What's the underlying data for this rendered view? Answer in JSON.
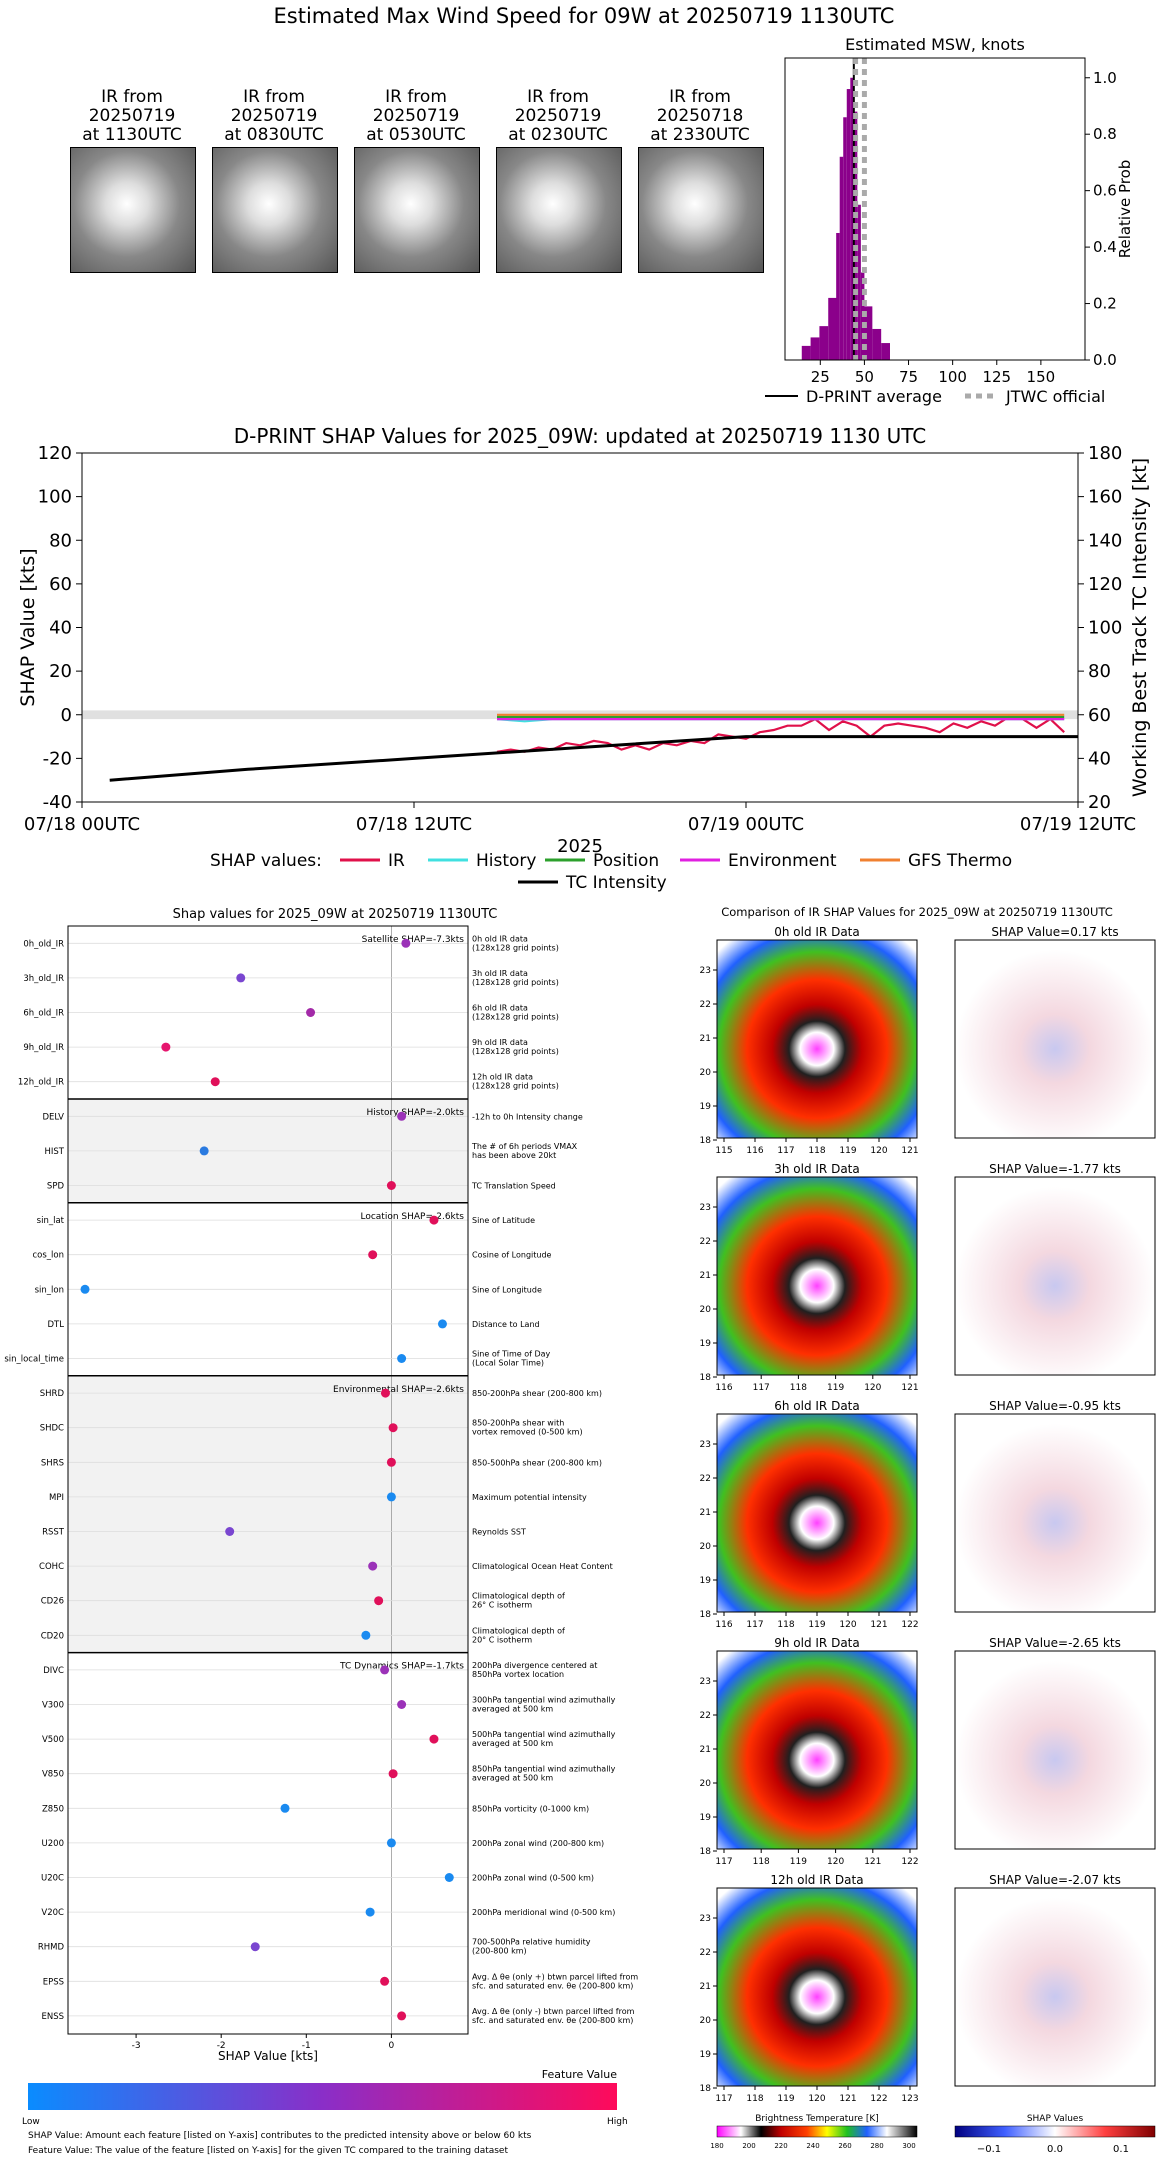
{
  "main_title": "Estimated Max Wind Speed for 09W at 20250719 1130UTC",
  "thumbnails": [
    {
      "line1": "IR from",
      "line2": "20250719",
      "line3": "at 1130UTC"
    },
    {
      "line1": "IR from",
      "line2": "20250719",
      "line3": "at 0830UTC"
    },
    {
      "line1": "IR from",
      "line2": "20250719",
      "line3": "at 0530UTC"
    },
    {
      "line1": "IR from",
      "line2": "20250719",
      "line3": "at 0230UTC"
    },
    {
      "line1": "IR from",
      "line2": "20250718",
      "line3": "at 2330UTC"
    }
  ],
  "msw_panel": {
    "legend_avg": "D-PRINT average",
    "legend_jtwc": "JTWC official"
  },
  "shap_timeline": {
    "legend_prefix": "SHAP values:",
    "tc_intensity_label": "TC Intensity"
  },
  "feature_panel": {
    "footnote1": "SHAP Value: Amount each feature [listed on Y-axis] contributes to the predicted intensity above or below 60 kts",
    "footnote2": "Feature Value: The value of the feature [listed on Y-axis] for the given TC compared to the training dataset",
    "colorbar_title": "Feature Value",
    "colorbar_low": "Low",
    "colorbar_high": "High"
  },
  "ir_panel": {
    "title": "Comparison of IR SHAP Values for 2025_09W at 20250719 1130UTC",
    "bt_colorbar_label": "Brightness Temperature [K]",
    "bt_ticks": [
      "180",
      "200",
      "220",
      "240",
      "260",
      "280",
      "300"
    ],
    "shap_colorbar_label": "SHAP Values",
    "shap_ticks": [
      "−0.1",
      "0.0",
      "0.1"
    ],
    "rows": [
      {
        "ir_title": "0h old IR Data",
        "shap_title": "SHAP Value=0.17 kts",
        "xticks": [
          "115",
          "116",
          "117",
          "118",
          "119",
          "120",
          "121"
        ]
      },
      {
        "ir_title": "3h old IR Data",
        "shap_title": "SHAP Value=-1.77 kts",
        "xticks": [
          "116",
          "117",
          "118",
          "119",
          "120",
          "121"
        ]
      },
      {
        "ir_title": "6h old IR Data",
        "shap_title": "SHAP Value=-0.95 kts",
        "xticks": [
          "116",
          "117",
          "118",
          "119",
          "120",
          "121",
          "122"
        ]
      },
      {
        "ir_title": "9h old IR Data",
        "shap_title": "SHAP Value=-2.65 kts",
        "xticks": [
          "117",
          "118",
          "119",
          "120",
          "121",
          "122"
        ]
      },
      {
        "ir_title": "12h old IR Data",
        "shap_title": "SHAP Value=-2.07 kts",
        "xticks": [
          "117",
          "118",
          "119",
          "120",
          "121",
          "122",
          "123"
        ]
      }
    ],
    "yticks": [
      "23",
      "22",
      "21",
      "20",
      "19",
      "18"
    ]
  },
  "chart_data": [
    {
      "type": "bar",
      "title": "Estimated MSW, knots",
      "xlabel": "",
      "ylabel": "Relative Prob",
      "xlim": [
        5,
        175
      ],
      "ylim": [
        0,
        1.07
      ],
      "xticks": [
        25,
        50,
        75,
        100,
        125,
        150
      ],
      "yticks": [
        0.0,
        0.2,
        0.4,
        0.6,
        0.8,
        1.0
      ],
      "bins_x": [
        17,
        22,
        27,
        32,
        35,
        37,
        39,
        41,
        43,
        45,
        47,
        49,
        52,
        57,
        62
      ],
      "values": [
        0.05,
        0.08,
        0.12,
        0.22,
        0.45,
        0.72,
        0.86,
        0.96,
        1.0,
        0.88,
        0.55,
        0.31,
        0.19,
        0.11,
        0.06
      ],
      "dprint_average": 44,
      "jtwc_official": [
        45,
        50
      ]
    },
    {
      "type": "line",
      "title": "D-PRINT SHAP Values for 2025_09W: updated at 20250719 1130 UTC",
      "xlabel": "2025",
      "ylabel": "SHAP Value [kts]",
      "ylabel_right": "Working Best Track TC Intensity [kt]",
      "ylim": [
        -40,
        120
      ],
      "ylim_right": [
        20,
        180
      ],
      "yticks": [
        -40,
        -20,
        0,
        20,
        40,
        60,
        80,
        100,
        120
      ],
      "yticks_right": [
        20,
        40,
        60,
        80,
        100,
        120,
        140,
        160,
        180
      ],
      "xticks": [
        "07/18 00UTC",
        "07/18 12UTC",
        "07/19 00UTC",
        "07/19 12UTC"
      ],
      "xlim_hours": [
        0,
        36
      ],
      "series": [
        {
          "name": "IR",
          "color": "#e0104a",
          "x": [
            15,
            15.5,
            16,
            16.5,
            17,
            17.5,
            18,
            18.5,
            19,
            19.5,
            20,
            20.5,
            21,
            21.5,
            22,
            22.5,
            23,
            23.5,
            24,
            24.5,
            25,
            25.5,
            26,
            26.5,
            27,
            27.5,
            28,
            28.5,
            29,
            29.5,
            30,
            30.5,
            31,
            31.5,
            32,
            32.5,
            33,
            33.5,
            34,
            34.5,
            35,
            35.5
          ],
          "values": [
            -17,
            -16,
            -17,
            -15,
            -16,
            -13,
            -14,
            -12,
            -13,
            -16,
            -14,
            -16,
            -13,
            -14,
            -12,
            -13,
            -9,
            -10,
            -11,
            -8,
            -7,
            -5,
            -5,
            -2,
            -7,
            -3,
            -5,
            -10,
            -5,
            -4,
            -5,
            -6,
            -8,
            -4,
            -6,
            -3,
            -5,
            -1,
            -2,
            -6,
            -2,
            -8
          ]
        },
        {
          "name": "History",
          "color": "#40e0e0",
          "x": [
            15,
            16,
            17,
            18,
            20,
            22,
            24,
            26,
            28,
            30,
            32,
            34,
            35.5
          ],
          "values": [
            -2,
            -3,
            -2,
            -2,
            -2,
            -2,
            -2,
            -2,
            -2,
            -2,
            -2,
            -2,
            -2
          ]
        },
        {
          "name": "Position",
          "color": "#2ca02c",
          "x": [
            15,
            16,
            17,
            18,
            20,
            22,
            24,
            26,
            28,
            30,
            32,
            34,
            35.5
          ],
          "values": [
            -1,
            -1,
            -1,
            -1,
            -1,
            -1,
            -1,
            -1,
            -1,
            -1,
            -1,
            -1,
            -1
          ]
        },
        {
          "name": "Environment",
          "color": "#e020e0",
          "x": [
            15,
            16,
            17,
            18,
            20,
            22,
            24,
            26,
            28,
            30,
            32,
            34,
            35.5
          ],
          "values": [
            -2,
            -2,
            -2,
            -2,
            -2,
            -2,
            -2,
            -2,
            -2,
            -2,
            -2,
            -2,
            -2
          ]
        },
        {
          "name": "GFS Thermo",
          "color": "#f08030",
          "x": [
            15,
            16,
            17,
            18,
            20,
            22,
            24,
            26,
            28,
            30,
            32,
            34,
            35.5
          ],
          "values": [
            0,
            0,
            0,
            0,
            0,
            0,
            0,
            0,
            0,
            0,
            0,
            0,
            0
          ]
        },
        {
          "name": "TC Intensity",
          "color": "#000000",
          "axis": "right",
          "x": [
            1,
            6,
            12,
            18,
            24,
            30,
            36
          ],
          "values": [
            30,
            35,
            40,
            45,
            50,
            50,
            50
          ]
        }
      ]
    },
    {
      "type": "scatter",
      "title": "Shap values for 2025_09W at 20250719 1130UTC",
      "xlabel": "SHAP Value [kts]",
      "xlim": [
        -3.8,
        0.9
      ],
      "xticks": [
        -3,
        -2,
        -1,
        0
      ],
      "groups": [
        {
          "label": "Satellite SHAP=-7.3kts",
          "shaded": false,
          "features": [
            {
              "name": "0h_old_IR",
              "desc": [
                "0h old IR data",
                "(128x128 grid points)"
              ],
              "shap": 0.17,
              "color": "#9b32b8"
            },
            {
              "name": "3h_old_IR",
              "desc": [
                "3h old IR data",
                "(128x128 grid points)"
              ],
              "shap": -1.77,
              "color": "#7a46d0"
            },
            {
              "name": "6h_old_IR",
              "desc": [
                "6h old IR data",
                "(128x128 grid points)"
              ],
              "shap": -0.95,
              "color": "#a32aa8"
            },
            {
              "name": "9h_old_IR",
              "desc": [
                "9h old IR data",
                "(128x128 grid points)"
              ],
              "shap": -2.65,
              "color": "#e6166e"
            },
            {
              "name": "12h_old_IR",
              "desc": [
                "12h old IR data",
                "(128x128 grid points)"
              ],
              "shap": -2.07,
              "color": "#e0105a"
            }
          ]
        },
        {
          "label": "History SHAP=-2.0kts",
          "shaded": true,
          "features": [
            {
              "name": "DELV",
              "desc": [
                "-12h to 0h Intensity change"
              ],
              "shap": 0.12,
              "color": "#9b32b8"
            },
            {
              "name": "HIST",
              "desc": [
                "The # of 6h periods VMAX",
                "has been above 20kt"
              ],
              "shap": -2.2,
              "color": "#2a7ae0"
            },
            {
              "name": "SPD",
              "desc": [
                "TC Translation Speed"
              ],
              "shap": 0.0,
              "color": "#e0105a"
            }
          ]
        },
        {
          "label": "Location SHAP=-2.6kts",
          "shaded": false,
          "features": [
            {
              "name": "sin_lat",
              "desc": [
                "Sine of Latitude"
              ],
              "shap": 0.5,
              "color": "#e0105a"
            },
            {
              "name": "cos_lon",
              "desc": [
                "Cosine of Longitude"
              ],
              "shap": -0.22,
              "color": "#e0105a"
            },
            {
              "name": "sin_lon",
              "desc": [
                "Sine of Longitude"
              ],
              "shap": -3.6,
              "color": "#1a8af0"
            },
            {
              "name": "DTL",
              "desc": [
                "Distance to Land"
              ],
              "shap": 0.6,
              "color": "#1a8af0"
            },
            {
              "name": "sin_local_time",
              "desc": [
                "Sine of Time of Day",
                "(Local Solar Time)"
              ],
              "shap": 0.12,
              "color": "#1a8af0"
            }
          ]
        },
        {
          "label": "Environmental SHAP=-2.6kts",
          "shaded": true,
          "features": [
            {
              "name": "SHRD",
              "desc": [
                "850-200hPa shear (200-800 km)"
              ],
              "shap": -0.07,
              "color": "#e0105a"
            },
            {
              "name": "SHDC",
              "desc": [
                "850-200hPa shear with",
                "vortex removed (0-500 km)"
              ],
              "shap": 0.02,
              "color": "#e0105a"
            },
            {
              "name": "SHRS",
              "desc": [
                "850-500hPa shear (200-800 km)"
              ],
              "shap": 0.0,
              "color": "#e0105a"
            },
            {
              "name": "MPI",
              "desc": [
                "Maximum potential intensity"
              ],
              "shap": 0.0,
              "color": "#1a8af0"
            },
            {
              "name": "RSST",
              "desc": [
                "Reynolds SST"
              ],
              "shap": -1.9,
              "color": "#7a46d0"
            },
            {
              "name": "COHC",
              "desc": [
                "Climatological Ocean Heat Content"
              ],
              "shap": -0.22,
              "color": "#9b32b8"
            },
            {
              "name": "CD26",
              "desc": [
                "Climatological depth of",
                "26° C isotherm"
              ],
              "shap": -0.15,
              "color": "#e0105a"
            },
            {
              "name": "CD20",
              "desc": [
                "Climatological depth of",
                "20° C isotherm"
              ],
              "shap": -0.3,
              "color": "#1a8af0"
            }
          ]
        },
        {
          "label": "TC Dynamics SHAP=-1.7kts",
          "shaded": false,
          "features": [
            {
              "name": "DIVC",
              "desc": [
                "200hPa divergence centered at",
                "850hPa vortex location"
              ],
              "shap": -0.08,
              "color": "#9b32b8"
            },
            {
              "name": "V300",
              "desc": [
                "300hPa tangential wind azimuthally",
                "averaged at 500 km"
              ],
              "shap": 0.12,
              "color": "#9b32b8"
            },
            {
              "name": "V500",
              "desc": [
                "500hPa tangential wind azimuthally",
                "averaged at 500 km"
              ],
              "shap": 0.5,
              "color": "#e0105a"
            },
            {
              "name": "V850",
              "desc": [
                "850hPa tangential wind azimuthally",
                "averaged at 500 km"
              ],
              "shap": 0.02,
              "color": "#e0105a"
            },
            {
              "name": "Z850",
              "desc": [
                "850hPa vorticity (0-1000 km)"
              ],
              "shap": -1.25,
              "color": "#1a8af0"
            },
            {
              "name": "U200",
              "desc": [
                "200hPa zonal wind (200-800 km)"
              ],
              "shap": 0.0,
              "color": "#1a8af0"
            },
            {
              "name": "U20C",
              "desc": [
                "200hPa zonal wind (0-500 km)"
              ],
              "shap": 0.68,
              "color": "#1a8af0"
            },
            {
              "name": "V20C",
              "desc": [
                "200hPa meridional wind (0-500 km)"
              ],
              "shap": -0.25,
              "color": "#1a8af0"
            },
            {
              "name": "RHMD",
              "desc": [
                "700-500hPa relative humidity",
                "(200-800 km)"
              ],
              "shap": -1.6,
              "color": "#7a46d0"
            },
            {
              "name": "EPSS",
              "desc": [
                "Avg. Δ θe (only +) btwn parcel lifted from",
                "sfc. and saturated env. θe (200-800 km)"
              ],
              "shap": -0.08,
              "color": "#e0105a"
            },
            {
              "name": "ENSS",
              "desc": [
                "Avg. Δ θe (only -) btwn parcel lifted from",
                "sfc. and saturated env. θe (200-800 km)"
              ],
              "shap": 0.12,
              "color": "#e0105a"
            }
          ]
        }
      ]
    }
  ]
}
